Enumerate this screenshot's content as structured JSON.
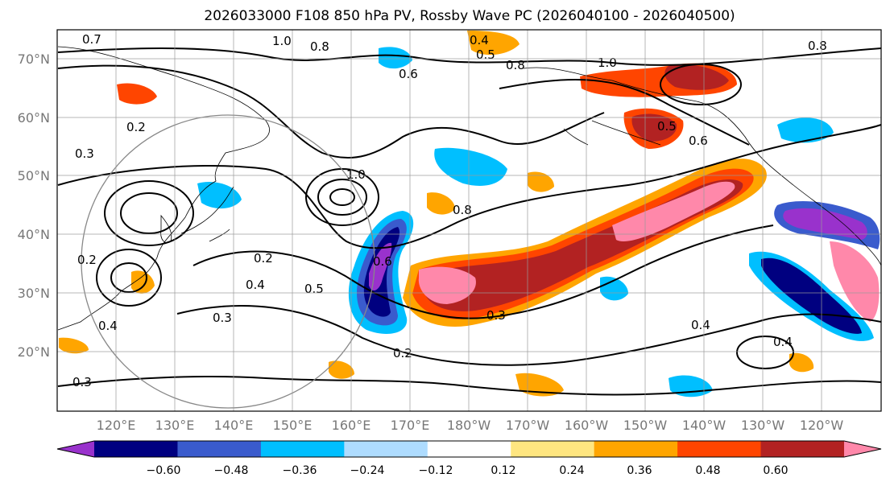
{
  "title": "2026033000 F108 850 hPa PV, Rossby Wave PC (2026040100 - 2026040500)",
  "map": {
    "lat_labels": [
      "70°N",
      "60°N",
      "50°N",
      "40°N",
      "30°N",
      "20°N"
    ],
    "lon_labels": [
      "120°E",
      "130°E",
      "140°E",
      "150°E",
      "160°E",
      "170°E",
      "180°W",
      "170°W",
      "160°W",
      "150°W",
      "140°W",
      "130°W",
      "120°W"
    ],
    "contour_labels": [
      "0.7",
      "1.0",
      "0.8",
      "0.4",
      "0.5",
      "0.8",
      "0.6",
      "1.0",
      "0.8",
      "0.2",
      "0.3",
      "1.0",
      "0.8",
      "0.6",
      "0.5",
      "0.2",
      "0.4",
      "0.5",
      "0.3",
      "0.3",
      "0.2",
      "0.4",
      "0.4",
      "0.3",
      "0.2",
      "0.4",
      "0.6"
    ]
  },
  "colorbar": {
    "colors": [
      "#9932CC",
      "#000080",
      "#3A5BCD",
      "#00BFFF",
      "#AEDCFF",
      "#FFFFFF",
      "#FFE680",
      "#FFA500",
      "#FF4500",
      "#B22222",
      "#FF88AA"
    ],
    "tick_labels": [
      "−0.60",
      "−0.48",
      "−0.36",
      "−0.24",
      "−0.12",
      "0.12",
      "0.24",
      "0.36",
      "0.48",
      "0.60"
    ]
  }
}
